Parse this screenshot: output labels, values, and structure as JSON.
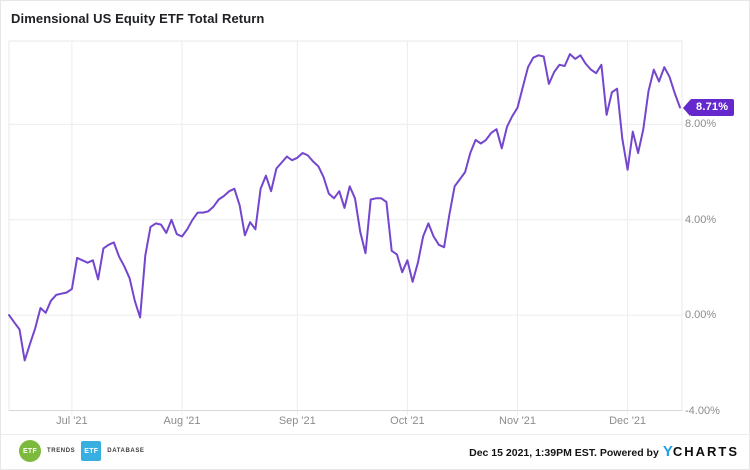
{
  "title": "Dimensional US Equity ETF Total Return",
  "chart_data": {
    "type": "line",
    "title": "Dimensional US Equity ETF Total Return",
    "x_start": "Jun 15 2021",
    "x_end": "Dec 15 2021",
    "x_unit": "trading days",
    "ylim": [
      -4.0,
      11.5
    ],
    "grid": true,
    "legend_position": "none",
    "line_color": "#7346cd",
    "badge_color": "#6428cd",
    "last_value_label": "8.71%",
    "last_value": 8.71,
    "y_ticks": [
      {
        "label": "8.00%",
        "value": 8
      },
      {
        "label": "4.00%",
        "value": 4
      },
      {
        "label": "0.00%",
        "value": 0
      },
      {
        "label": "-4.00%",
        "value": -4
      }
    ],
    "x_ticks": [
      {
        "label": "Jul '21",
        "index": 12
      },
      {
        "label": "Aug '21",
        "index": 33
      },
      {
        "label": "Sep '21",
        "index": 55
      },
      {
        "label": "Oct '21",
        "index": 76
      },
      {
        "label": "Nov '21",
        "index": 97
      },
      {
        "label": "Dec '21",
        "index": 118
      }
    ],
    "values": [
      0.0,
      -0.3,
      -0.6,
      -1.9,
      -1.2,
      -0.55,
      0.3,
      0.1,
      0.6,
      0.85,
      0.9,
      0.95,
      1.1,
      2.4,
      2.3,
      2.2,
      2.3,
      1.5,
      2.8,
      2.95,
      3.05,
      2.45,
      2.05,
      1.55,
      0.6,
      -0.1,
      2.5,
      3.7,
      3.85,
      3.8,
      3.45,
      4.0,
      3.4,
      3.3,
      3.6,
      4.0,
      4.3,
      4.3,
      4.35,
      4.55,
      4.85,
      5.0,
      5.2,
      5.3,
      4.6,
      3.35,
      3.9,
      3.6,
      5.3,
      5.85,
      5.2,
      6.15,
      6.4,
      6.65,
      6.5,
      6.6,
      6.8,
      6.7,
      6.45,
      6.25,
      5.8,
      5.1,
      4.9,
      5.2,
      4.5,
      5.4,
      4.9,
      3.5,
      2.6,
      4.85,
      4.9,
      4.9,
      4.75,
      2.7,
      2.55,
      1.8,
      2.3,
      1.4,
      2.2,
      3.3,
      3.85,
      3.3,
      2.95,
      2.85,
      4.2,
      5.4,
      5.7,
      6.0,
      6.8,
      7.35,
      7.2,
      7.35,
      7.65,
      7.8,
      7.0,
      7.9,
      8.35,
      8.7,
      9.55,
      10.4,
      10.8,
      10.9,
      10.85,
      9.7,
      10.2,
      10.5,
      10.45,
      10.95,
      10.75,
      10.9,
      10.55,
      10.3,
      10.15,
      10.5,
      8.4,
      9.35,
      9.5,
      7.4,
      6.1,
      7.7,
      6.8,
      7.8,
      9.4,
      10.3,
      9.8,
      10.4,
      10.0,
      9.3,
      8.71
    ]
  },
  "footer": {
    "timestamp": "Dec 15 2021, 1:39PM EST.",
    "powered_by": "Powered by",
    "ycharts_y": "Y",
    "ycharts_rest": "CHARTS",
    "etf_trends_badge": "ETF",
    "etf_trends_label": "TRENDS",
    "etf_database_badge": "ETF",
    "etf_database_label": "DATABASE"
  }
}
